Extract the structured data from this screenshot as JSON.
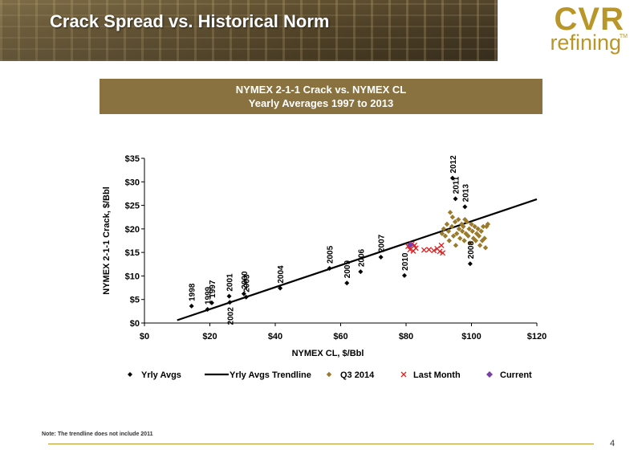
{
  "header": {
    "title": "Crack Spread vs. Historical Norm",
    "logo_top": "CVR",
    "logo_bottom": "refining",
    "logo_tm": "TM"
  },
  "banner": {
    "line1": "NYMEX 2-1-1 Crack vs. NYMEX CL",
    "line2": "Yearly Averages 1997 to 2013"
  },
  "chart_data": {
    "type": "scatter",
    "xlabel": "NYMEX CL, $/Bbl",
    "ylabel": "NYMEX 2-1-1 Crack, $/Bbl",
    "xlim": [
      0,
      120
    ],
    "ylim": [
      0,
      35
    ],
    "xticks": [
      0,
      20,
      40,
      60,
      80,
      100,
      120
    ],
    "yticks": [
      0,
      5,
      10,
      15,
      20,
      25,
      30,
      35
    ],
    "x_tick_labels": [
      "$0",
      "$20",
      "$40",
      "$60",
      "$80",
      "$100",
      "$120"
    ],
    "y_tick_labels": [
      "$0",
      "$5",
      "$10",
      "$15",
      "$20",
      "$25",
      "$30",
      "$35"
    ],
    "grid": false,
    "legend_position": "bottom",
    "legend": [
      "Yrly Avgs",
      "Yrly Avgs Trendline",
      "Q3 2014",
      "Last Month",
      "Current"
    ],
    "colors": {
      "yrly": "#000000",
      "trend": "#000000",
      "q3": "#9c7a2c",
      "last_month": "#e02020",
      "current": "#7a3fa6"
    },
    "yearly_avgs": [
      {
        "label": "1997",
        "x": 20.6,
        "y": 4.3
      },
      {
        "label": "1998",
        "x": 14.4,
        "y": 3.6
      },
      {
        "label": "1999",
        "x": 19.3,
        "y": 2.9
      },
      {
        "label": "2000",
        "x": 30.4,
        "y": 6.2
      },
      {
        "label": "2001",
        "x": 25.9,
        "y": 5.7
      },
      {
        "label": "2002",
        "x": 26.1,
        "y": 4.4
      },
      {
        "label": "2003",
        "x": 31.1,
        "y": 5.5
      },
      {
        "label": "2004",
        "x": 41.5,
        "y": 7.4
      },
      {
        "label": "2005",
        "x": 56.6,
        "y": 11.6
      },
      {
        "label": "2006",
        "x": 66.1,
        "y": 10.9
      },
      {
        "label": "2007",
        "x": 72.3,
        "y": 14.0
      },
      {
        "label": "2008",
        "x": 99.6,
        "y": 12.6
      },
      {
        "label": "2009",
        "x": 61.9,
        "y": 8.5
      },
      {
        "label": "2010",
        "x": 79.5,
        "y": 10.1
      },
      {
        "label": "2011",
        "x": 95.1,
        "y": 26.4
      },
      {
        "label": "2012",
        "x": 94.2,
        "y": 30.8
      },
      {
        "label": "2013",
        "x": 98.0,
        "y": 24.7
      }
    ],
    "trendline": {
      "x": [
        10,
        120
      ],
      "y": [
        0.6,
        26.3
      ]
    },
    "q3_2014": [
      [
        91,
        19
      ],
      [
        91.5,
        20
      ],
      [
        92,
        18.5
      ],
      [
        92.5,
        21
      ],
      [
        93,
        19.5
      ],
      [
        93.2,
        17.5
      ],
      [
        93.5,
        23.5
      ],
      [
        94,
        20.5
      ],
      [
        94.2,
        22.5
      ],
      [
        94.5,
        18.5
      ],
      [
        95,
        21.5
      ],
      [
        95.2,
        16.5
      ],
      [
        95.5,
        19
      ],
      [
        96,
        22
      ],
      [
        96.2,
        20
      ],
      [
        96.5,
        18
      ],
      [
        97,
        21
      ],
      [
        97.2,
        19.5
      ],
      [
        97.5,
        20.5
      ],
      [
        97.8,
        17.5
      ],
      [
        98,
        22
      ],
      [
        98.3,
        19
      ],
      [
        98.6,
        21.5
      ],
      [
        99,
        18.5
      ],
      [
        99.3,
        20
      ],
      [
        99.6,
        17
      ],
      [
        100,
        21
      ],
      [
        100.3,
        19.5
      ],
      [
        100.6,
        18
      ],
      [
        101,
        20.5
      ],
      [
        101.3,
        17.5
      ],
      [
        101.6,
        19
      ],
      [
        102,
        20
      ],
      [
        102.3,
        18.5
      ],
      [
        102.6,
        16.5
      ],
      [
        103,
        19.5
      ],
      [
        103.3,
        17.5
      ],
      [
        103.6,
        20.5
      ],
      [
        104,
        18
      ],
      [
        104.3,
        16
      ],
      [
        104.6,
        20.5
      ],
      [
        105,
        21
      ]
    ],
    "last_month": [
      [
        80.6,
        16.3
      ],
      [
        81.2,
        15.6
      ],
      [
        81.8,
        16.8
      ],
      [
        82.2,
        15.3
      ],
      [
        82.6,
        16.5
      ],
      [
        83,
        15.9
      ],
      [
        85.5,
        15.5
      ],
      [
        87,
        15.6
      ],
      [
        88.5,
        15.4
      ],
      [
        89.5,
        15.8
      ],
      [
        90.3,
        15.2
      ],
      [
        90.8,
        16.5
      ],
      [
        91.2,
        14.9
      ]
    ],
    "current": [
      [
        81.3,
        16.6
      ]
    ]
  },
  "note": "Note: The trendline does not include 2011",
  "page_number": "4"
}
